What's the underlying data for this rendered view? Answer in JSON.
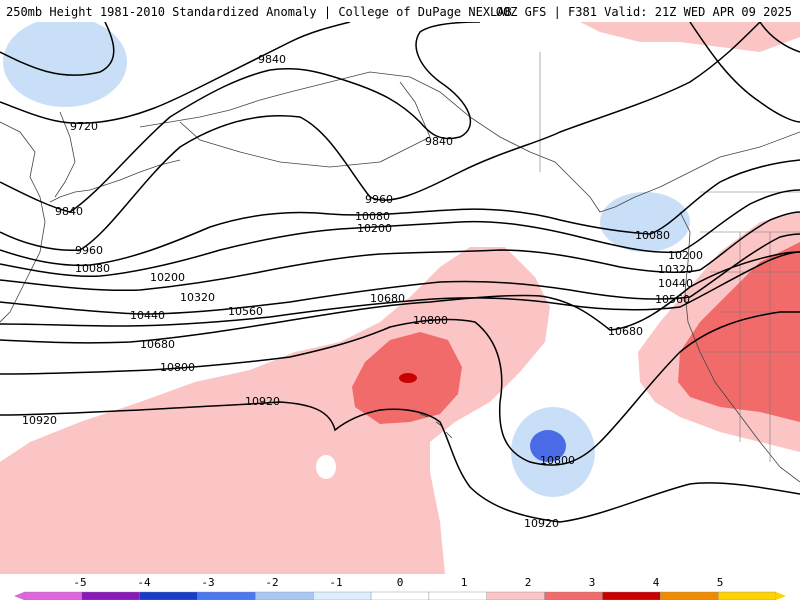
{
  "header": {
    "title": "250mb Height 1981-2010 Standardized Anomaly | College of DuPage NEXLAB",
    "run_info": "00Z GFS | F381 Valid: 21Z WED APR 09 2025"
  },
  "map": {
    "contour_labels": [
      {
        "id": "c9840a",
        "text": "9840"
      },
      {
        "id": "c9720",
        "text": "9720"
      },
      {
        "id": "c9840b",
        "text": "9840"
      },
      {
        "id": "c9840c",
        "text": "9840"
      },
      {
        "id": "c9960a",
        "text": "9960"
      },
      {
        "id": "c9960b",
        "text": "9960"
      },
      {
        "id": "c10080a",
        "text": "10080"
      },
      {
        "id": "c10080b",
        "text": "10080"
      },
      {
        "id": "c10080c",
        "text": "10080"
      },
      {
        "id": "c10200a",
        "text": "10200"
      },
      {
        "id": "c10200b",
        "text": "10200"
      },
      {
        "id": "c10200c",
        "text": "10200"
      },
      {
        "id": "c10320a",
        "text": "10320"
      },
      {
        "id": "c10320b",
        "text": "10320"
      },
      {
        "id": "c10440a",
        "text": "10440"
      },
      {
        "id": "c10440b",
        "text": "10440"
      },
      {
        "id": "c10560a",
        "text": "10560"
      },
      {
        "id": "c10560b",
        "text": "10560"
      },
      {
        "id": "c10680a",
        "text": "10680"
      },
      {
        "id": "c10680b",
        "text": "10680"
      },
      {
        "id": "c10680c",
        "text": "10680"
      },
      {
        "id": "c10800a",
        "text": "10800"
      },
      {
        "id": "c10800b",
        "text": "10800"
      },
      {
        "id": "c10800c",
        "text": "10800"
      },
      {
        "id": "c10920a",
        "text": "10920"
      },
      {
        "id": "c10920b",
        "text": "10920"
      },
      {
        "id": "c10920c",
        "text": "10920"
      }
    ],
    "anomaly_colors": {
      "plus1": "#fbc5c5",
      "plus2": "#f26b6b",
      "plus3": "#c80000",
      "minus1": "#c9dff7",
      "minus2": "#4a6ae6"
    }
  },
  "colorbar": {
    "ticks": [
      "-5",
      "-4",
      "-3",
      "-2",
      "-1",
      "0",
      "1",
      "2",
      "3",
      "4",
      "5"
    ],
    "colors": [
      "#e066e0",
      "#8a1ab8",
      "#1a3cc8",
      "#4a78f0",
      "#a8c8f4",
      "#ddeeff",
      "#ffffff",
      "#ffffff",
      "#fbc5c5",
      "#f26b6b",
      "#c80000",
      "#f08a00",
      "#ffd200"
    ]
  }
}
